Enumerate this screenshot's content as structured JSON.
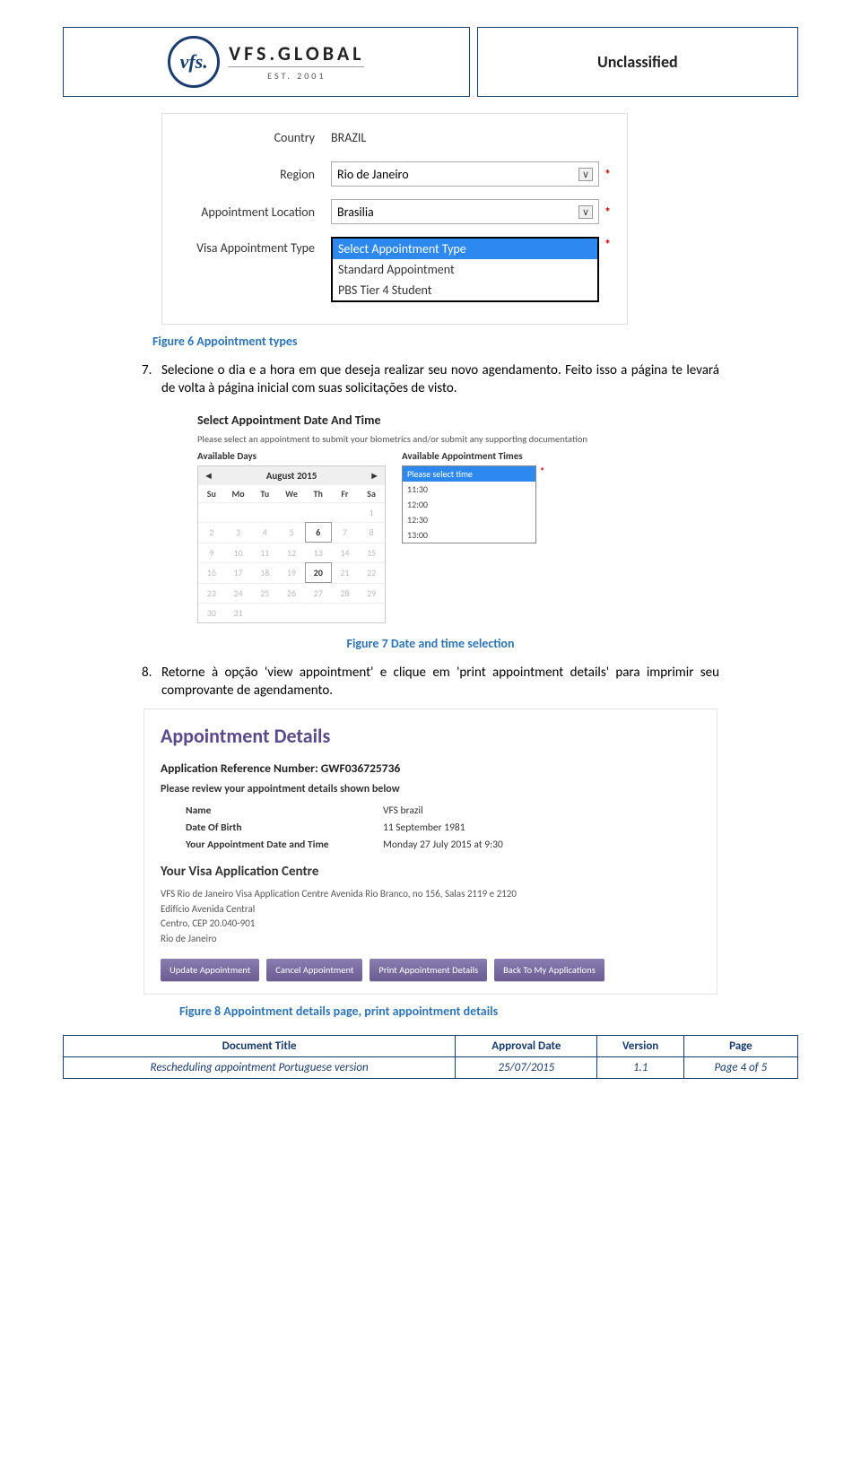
{
  "header": {
    "logo_mark": "vfs.",
    "logo_main": "VFS.GLOBAL",
    "logo_sub": "EST. 2001",
    "classification": "Unclassified"
  },
  "screenshot1": {
    "country_label": "Country",
    "country_value": "BRAZIL",
    "region_label": "Region",
    "region_value": "Rio de Janeiro",
    "location_label": "Appointment Location",
    "location_value": "Brasilia",
    "type_label": "Visa Appointment Type",
    "type_selected": "Select Appointment Type",
    "type_option1": "Standard Appointment",
    "type_option2": "PBS Tier 4 Student",
    "asterisk": "*"
  },
  "caption1": "Figure 6 Appointment types",
  "step7": {
    "num": "7.",
    "text": "Selecione o dia e a hora em que deseja realizar seu novo agendamento. Feito isso a página te levará de volta à página inicial com suas solicitações de visto."
  },
  "screenshot2": {
    "title": "Select Appointment Date And Time",
    "instruction": "Please select an appointment to submit your biometrics and/or submit any supporting documentation",
    "col1_title": "Available Days",
    "col2_title": "Available Appointment Times",
    "month": "August 2015",
    "weekdays": [
      "Su",
      "Mo",
      "Tu",
      "We",
      "Th",
      "Fr",
      "Sa"
    ],
    "rows": [
      [
        "",
        "",
        "",
        "",
        "",
        "",
        "1"
      ],
      [
        "2",
        "3",
        "4",
        "5",
        "6",
        "7",
        "8"
      ],
      [
        "9",
        "10",
        "11",
        "12",
        "13",
        "14",
        "15"
      ],
      [
        "16",
        "17",
        "18",
        "19",
        "20",
        "21",
        "22"
      ],
      [
        "23",
        "24",
        "25",
        "26",
        "27",
        "28",
        "29"
      ],
      [
        "30",
        "31",
        "",
        "",
        "",
        "",
        ""
      ]
    ],
    "highlighted": [
      "6",
      "20"
    ],
    "time_selected": "Please select time",
    "times": [
      "11:30",
      "12:00",
      "12:30",
      "13:00"
    ],
    "asterisk": "*"
  },
  "caption2": "Figure 7 Date and time selection",
  "step8": {
    "num": "8.",
    "text": "Retorne à opção 'view appointment' e clique em 'print appointment details' para imprimir seu comprovante de agendamento."
  },
  "screenshot3": {
    "heading": "Appointment Details",
    "ref_label": "Application Reference Number: ",
    "ref_value": "GWF036725736",
    "review": "Please review your appointment details shown below",
    "name_k": "Name",
    "name_v": "VFS  brazil",
    "dob_k": "Date Of Birth",
    "dob_v": "11 September 1981",
    "dt_k": "Your Appointment Date and Time",
    "dt_v": "Monday 27 July 2015  at  9:30",
    "centre_heading": "Your Visa Application Centre",
    "addr1": "VFS Rio de Janeiro Visa Application Centre Avenida Rio Branco, no 156, Salas 2119 e 2120",
    "addr2": "Edifício Avenida Central",
    "addr3": "Centro, CEP 20.040-901",
    "addr4": "Rio de Janeiro",
    "btn1": "Update Appointment",
    "btn2": "Cancel Appointment",
    "btn3": "Print Appointment Details",
    "btn4": "Back To My Applications"
  },
  "caption3": "Figure 8 Appointment details page, print appointment details",
  "footer": {
    "h1": "Document Title",
    "h2": "Approval Date",
    "h3": "Version",
    "h4": "Page",
    "v1": "Rescheduling appointment Portuguese version",
    "v2": "25/07/2015",
    "v3": "1.1",
    "v4": "Page 4 of 5"
  },
  "colors": {
    "caption": "#2e74b5",
    "border": "#1a3c6e",
    "highlight": "#2d89ef",
    "button": "#6b5c93",
    "heading_purple": "#5a4a8a"
  }
}
